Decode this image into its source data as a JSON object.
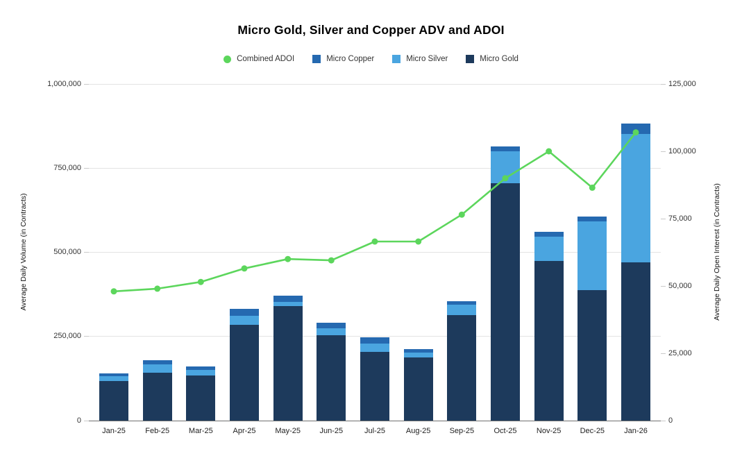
{
  "chart_data": {
    "type": "combo",
    "subtype": "stacked-bar + line (dual axis)",
    "title": "Micro Gold, Silver and Copper ADV and ADOI",
    "categories": [
      "Jan-25",
      "Feb-25",
      "Mar-25",
      "Apr-25",
      "May-25",
      "Jun-25",
      "Jul-25",
      "Aug-25",
      "Sep-25",
      "Oct-25",
      "Nov-25",
      "Dec-25",
      "Jan-26"
    ],
    "bar_series": [
      {
        "name": "Micro Gold",
        "color": "#1d3a5c",
        "axis": "left",
        "values": [
          117000,
          143000,
          134000,
          284000,
          341000,
          254000,
          205000,
          187000,
          313000,
          705000,
          474000,
          388000,
          470000
        ]
      },
      {
        "name": "Micro Silver",
        "color": "#4aa5e0",
        "axis": "left",
        "values": [
          15000,
          24000,
          16000,
          27000,
          11000,
          21000,
          24000,
          15000,
          31000,
          95000,
          72000,
          203000,
          381000
        ]
      },
      {
        "name": "Micro Copper",
        "color": "#2569b0",
        "axis": "left",
        "values": [
          9000,
          12000,
          11000,
          22000,
          20000,
          16000,
          19000,
          10000,
          11000,
          15000,
          15000,
          16000,
          31000
        ]
      }
    ],
    "line_series": {
      "name": "Combined ADOI",
      "color": "#5cd65c",
      "axis": "right",
      "values": [
        48000,
        49000,
        51500,
        56500,
        60000,
        59500,
        66500,
        66500,
        76500,
        90000,
        100000,
        86500,
        107000
      ]
    },
    "y_left": {
      "label": "Average Daily Volume (in Contracts)",
      "min": 0,
      "max": 1000000,
      "ticks": [
        "0",
        "250,000",
        "500,000",
        "750,000",
        "1,000,000"
      ]
    },
    "y_right": {
      "label": "Average Daily Open Interest (in Contracts)",
      "min": 0,
      "max": 125000,
      "ticks": [
        "0",
        "25,000",
        "50,000",
        "75,000",
        "100,000",
        "125,000"
      ]
    },
    "legend": [
      {
        "label": "Combined ADOI",
        "shape": "circle",
        "color": "#5cd65c"
      },
      {
        "label": "Micro Copper",
        "shape": "square",
        "color": "#2569b0"
      },
      {
        "label": "Micro Silver",
        "shape": "square",
        "color": "#4aa5e0"
      },
      {
        "label": "Micro Gold",
        "shape": "square",
        "color": "#1d3a5c"
      }
    ],
    "layout_hints": {
      "legend_position": "top",
      "grid": "horizontal gridlines at left-axis ticks only",
      "stack_order_bottom_to_top": [
        "Micro Gold",
        "Micro Silver",
        "Micro Copper"
      ]
    }
  }
}
